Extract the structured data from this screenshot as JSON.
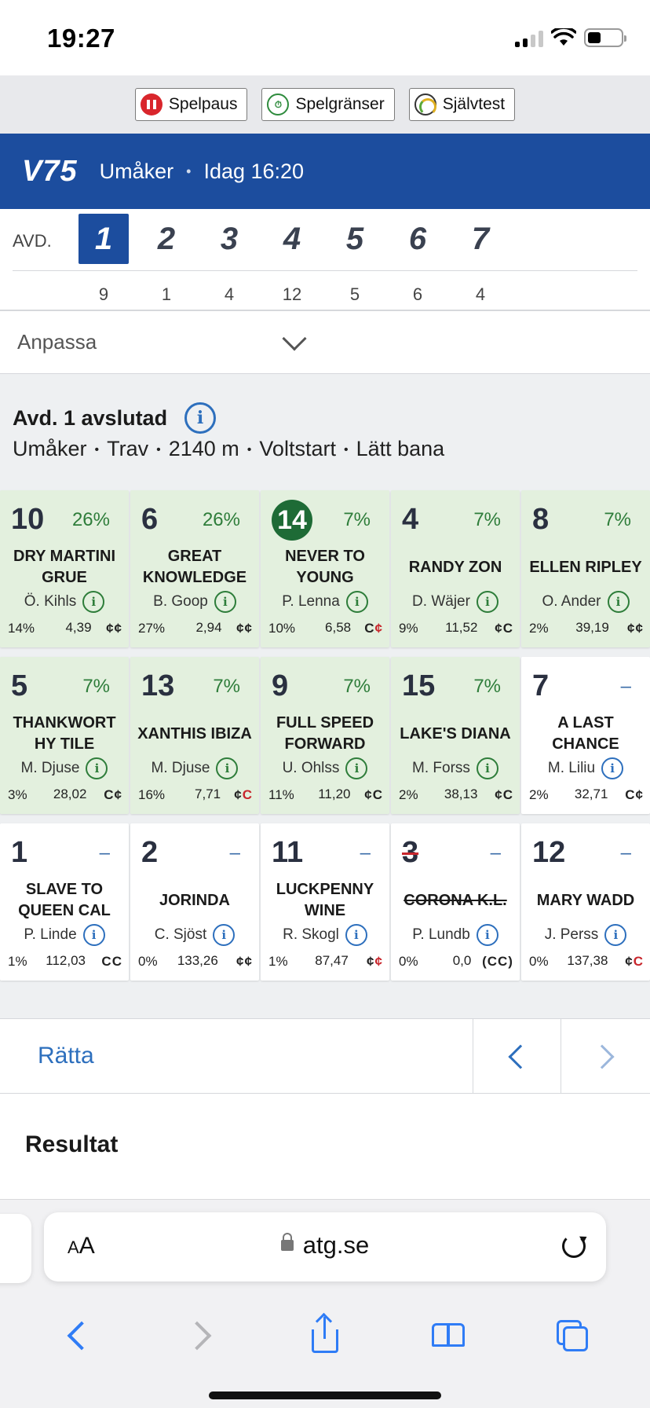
{
  "status_bar": {
    "time": "19:27"
  },
  "responsible_gaming": [
    {
      "label": "Spelpaus",
      "icon": "pause-icon"
    },
    {
      "label": "Spelgränser",
      "icon": "limits-icon"
    },
    {
      "label": "Självtest",
      "icon": "gauge-icon"
    }
  ],
  "header": {
    "game": "V75",
    "track": "Umåker",
    "separator": "•",
    "time": "Idag 16:20"
  },
  "avd": {
    "label": "AVD.",
    "items": [
      {
        "num": "1",
        "count": "9",
        "active": true
      },
      {
        "num": "2",
        "count": "1"
      },
      {
        "num": "3",
        "count": "4"
      },
      {
        "num": "4",
        "count": "12"
      },
      {
        "num": "5",
        "count": "5"
      },
      {
        "num": "6",
        "count": "6"
      },
      {
        "num": "7",
        "count": "4"
      }
    ]
  },
  "anpassa": {
    "label": "Anpassa"
  },
  "race": {
    "title": "Avd. 1 avslutad",
    "meta": [
      "Umåker",
      "Trav",
      "2140 m",
      "Voltstart",
      "Lätt bana"
    ],
    "meta_sep": "•"
  },
  "horses": [
    {
      "num": "10",
      "pct": "26%",
      "name": "DRY MARTINI GRUE",
      "driver": "Ö. Kihls",
      "stat": "14%",
      "odds": "4,39",
      "shoe": [
        [
          "¢",
          "k"
        ],
        [
          "¢",
          "k"
        ]
      ],
      "green": true
    },
    {
      "num": "6",
      "pct": "26%",
      "name": "GREAT KNOWLEDGE",
      "driver": "B. Goop",
      "stat": "27%",
      "odds": "2,94",
      "shoe": [
        [
          "¢",
          "k"
        ],
        [
          "¢",
          "k"
        ]
      ],
      "green": true
    },
    {
      "num": "14",
      "pct": "7%",
      "name": "NEVER TO YOUNG",
      "driver": "P. Lenna",
      "stat": "10%",
      "odds": "6,58",
      "shoe": [
        [
          "C",
          "k"
        ],
        [
          "¢",
          "r"
        ]
      ],
      "green": true,
      "winner": true
    },
    {
      "num": "4",
      "pct": "7%",
      "name": "RANDY ZON",
      "driver": "D. Wäjer",
      "stat": "9%",
      "odds": "11,52",
      "shoe": [
        [
          "¢",
          "k"
        ],
        [
          "C",
          "k"
        ]
      ],
      "green": true
    },
    {
      "num": "8",
      "pct": "7%",
      "name": "ELLEN RIPLEY",
      "driver": "O. Ander",
      "stat": "2%",
      "odds": "39,19",
      "shoe": [
        [
          "¢",
          "k"
        ],
        [
          "¢",
          "k"
        ]
      ],
      "green": true
    },
    {
      "num": "5",
      "pct": "7%",
      "name": "THANKWORT HY TILE",
      "driver": "M. Djuse",
      "stat": "3%",
      "odds": "28,02",
      "shoe": [
        [
          "C",
          "k"
        ],
        [
          "¢",
          "k"
        ]
      ],
      "green": true
    },
    {
      "num": "13",
      "pct": "7%",
      "name": "XANTHIS IBIZA",
      "driver": "M. Djuse",
      "stat": "16%",
      "odds": "7,71",
      "shoe": [
        [
          "¢",
          "k"
        ],
        [
          "C",
          "r"
        ]
      ],
      "green": true
    },
    {
      "num": "9",
      "pct": "7%",
      "name": "FULL SPEED FORWARD",
      "driver": "U. Ohlss",
      "stat": "11%",
      "odds": "11,20",
      "shoe": [
        [
          "¢",
          "k"
        ],
        [
          "C",
          "k"
        ]
      ],
      "green": true
    },
    {
      "num": "15",
      "pct": "7%",
      "name": "LAKE'S DIANA",
      "driver": "M. Forss",
      "stat": "2%",
      "odds": "38,13",
      "shoe": [
        [
          "¢",
          "k"
        ],
        [
          "C",
          "k"
        ]
      ],
      "green": true
    },
    {
      "num": "7",
      "pct": "–",
      "name": "A LAST CHANCE",
      "driver": "M. Liliu",
      "stat": "2%",
      "odds": "32,71",
      "shoe": [
        [
          "C",
          "k"
        ],
        [
          "¢",
          "k"
        ]
      ]
    },
    {
      "num": "1",
      "pct": "–",
      "name": "SLAVE TO QUEEN CAL",
      "driver": "P. Linde",
      "stat": "1%",
      "odds": "112,03",
      "shoe": [
        [
          "C",
          "k"
        ],
        [
          "C",
          "k"
        ]
      ]
    },
    {
      "num": "2",
      "pct": "–",
      "name": "JORINDA",
      "driver": "C. Sjöst",
      "stat": "0%",
      "odds": "133,26",
      "shoe": [
        [
          "¢",
          "k"
        ],
        [
          "¢",
          "k"
        ]
      ]
    },
    {
      "num": "11",
      "pct": "–",
      "name": "LUCKPENNY WINE",
      "driver": "R. Skogl",
      "stat": "1%",
      "odds": "87,47",
      "shoe": [
        [
          "¢",
          "k"
        ],
        [
          "¢",
          "r"
        ]
      ]
    },
    {
      "num": "3",
      "pct": "–",
      "name": "CORONA K.L.",
      "driver": "P. Lundb",
      "stat": "0%",
      "odds": "0,0",
      "shoe": [
        [
          "(C",
          "k"
        ],
        [
          "C)",
          "k"
        ]
      ],
      "scratched": true
    },
    {
      "num": "12",
      "pct": "–",
      "name": "MARY WADD",
      "driver": "J. Perss",
      "stat": "0%",
      "odds": "137,38",
      "shoe": [
        [
          "¢",
          "k"
        ],
        [
          "C",
          "r"
        ]
      ]
    }
  ],
  "correction": {
    "label": "Rätta"
  },
  "result": {
    "label": "Resultat"
  },
  "browser": {
    "aa_small": "A",
    "aa_big": "A",
    "url": "atg.se"
  },
  "colors": {
    "brand_blue": "#1c4d9e",
    "green_card": "#e3f0de",
    "winner_green": "#1e6b36",
    "link_blue": "#2d6fbd"
  }
}
